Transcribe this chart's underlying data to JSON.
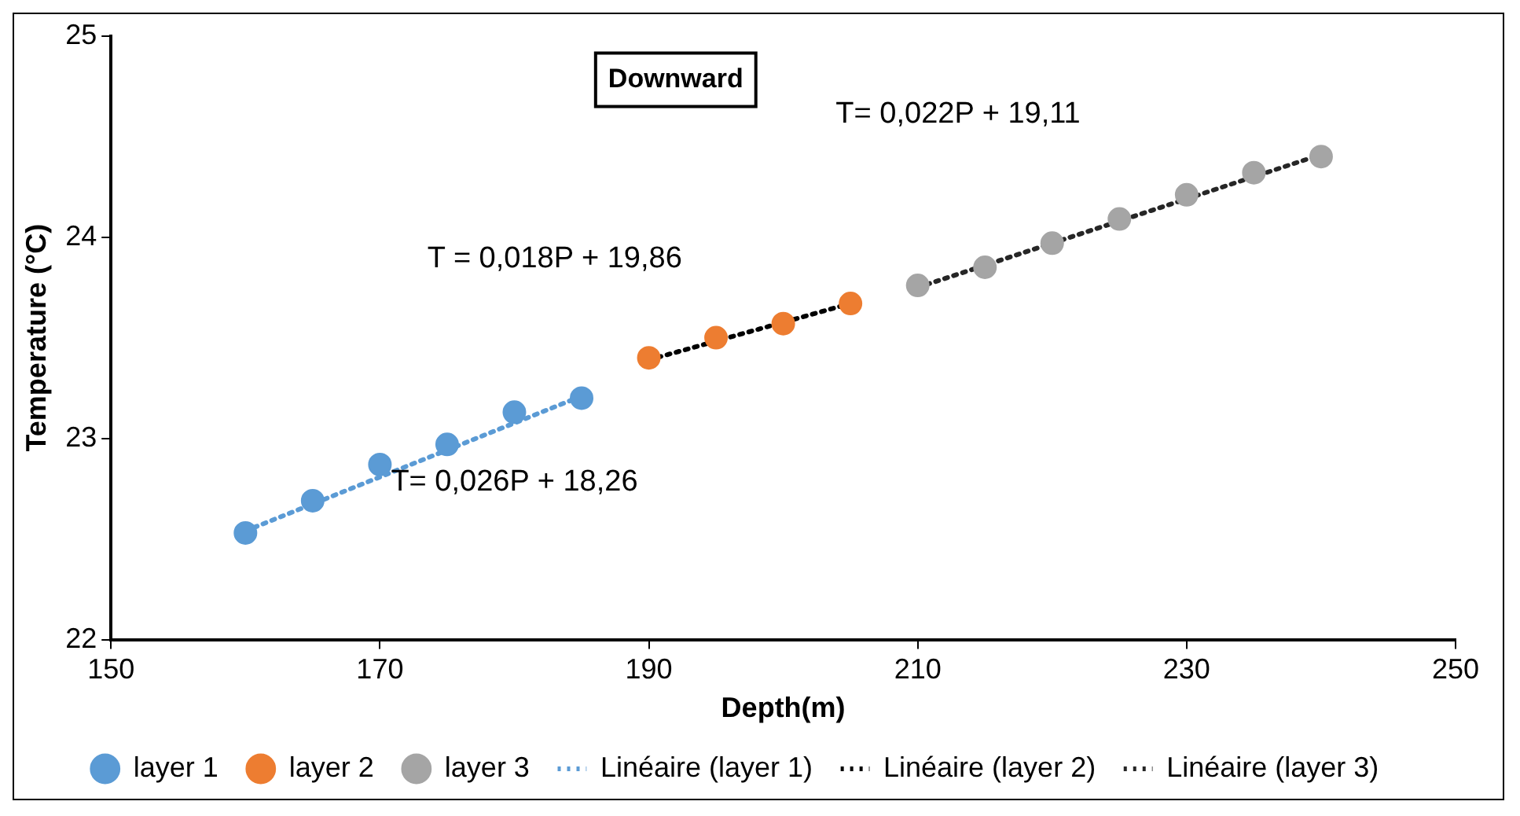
{
  "chart_data": {
    "type": "scatter",
    "xlabel": "Depth(m)",
    "ylabel": "Temperature (°C)",
    "xlim": [
      150,
      250
    ],
    "xticks": [
      150,
      170,
      190,
      210,
      230,
      250
    ],
    "ylim": [
      22,
      25
    ],
    "yticks": [
      22,
      23,
      24,
      25
    ],
    "grid": false,
    "legend": "bottom",
    "marker": "circle",
    "annotations": [
      "Downward",
      "T= 0,026P + 18,26",
      "T = 0,018P + 19,86",
      "T= 0,022P + 19,11"
    ],
    "series": [
      {
        "name": "layer 1",
        "color": "#5b9bd5",
        "x": [
          160,
          165,
          170,
          175,
          180,
          185
        ],
        "values": [
          22.53,
          22.69,
          22.87,
          22.97,
          23.13,
          23.2
        ]
      },
      {
        "name": "layer 2",
        "color": "#ed7d31",
        "x": [
          190,
          195,
          200,
          205
        ],
        "values": [
          23.4,
          23.5,
          23.57,
          23.67
        ]
      },
      {
        "name": "layer 3",
        "color": "#a5a5a5",
        "x": [
          210,
          215,
          220,
          225,
          230,
          235,
          240
        ],
        "values": [
          23.76,
          23.85,
          23.97,
          24.09,
          24.21,
          24.32,
          24.4
        ]
      },
      {
        "name": "Linéaire (layer 1)",
        "type": "line",
        "marker": "none",
        "line_style": "dotted",
        "color": "#5b9bd5",
        "x": [
          160,
          185
        ],
        "values": [
          22.54,
          23.21
        ]
      },
      {
        "name": "Linéaire (layer 2)",
        "type": "line",
        "marker": "none",
        "line_style": "dotted",
        "color": "#000000",
        "x": [
          190,
          205
        ],
        "values": [
          23.39,
          23.67
        ]
      },
      {
        "name": "Linéaire (layer 3)",
        "type": "line",
        "marker": "none",
        "line_style": "dotted",
        "color": "#262626",
        "x": [
          210,
          240
        ],
        "values": [
          23.75,
          24.41
        ]
      }
    ]
  }
}
